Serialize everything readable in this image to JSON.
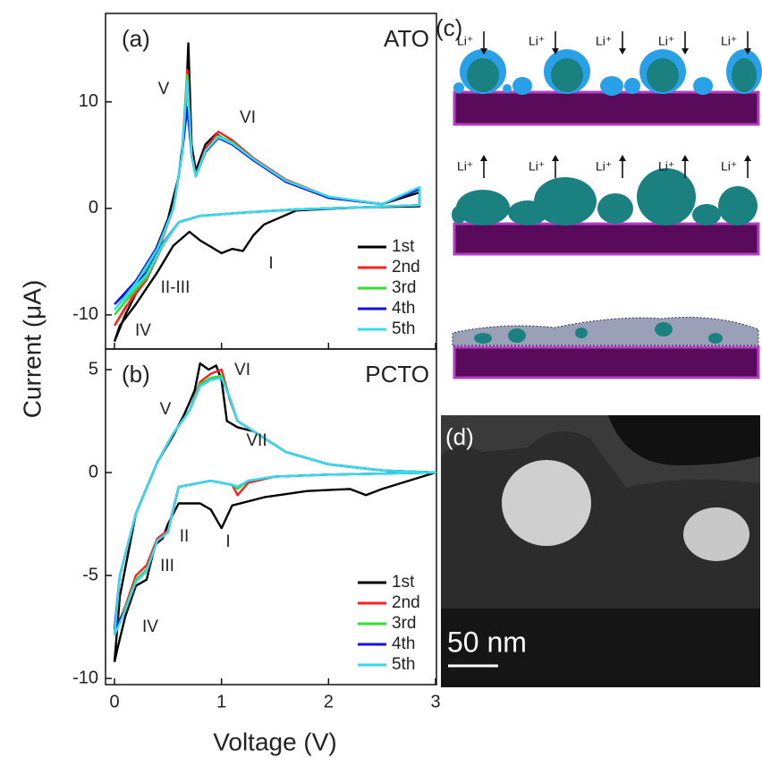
{
  "chart_data": [
    {
      "type": "line",
      "panel": "(a)",
      "title": "ATO",
      "ylabel": "Current (μA)",
      "xlim": [
        0,
        3
      ],
      "xticks": [
        0,
        1,
        2,
        3
      ],
      "ylim": [
        -13.2,
        18.3
      ],
      "yticks": [
        -10,
        0,
        10
      ],
      "annotations": [
        "V",
        "VI",
        "II-III",
        "IV",
        "I"
      ],
      "legend": "lower right",
      "series": [
        {
          "name": "1st",
          "color": "#000000",
          "x": [
            0,
            0.1,
            0.3,
            0.5,
            0.6,
            0.66,
            0.69,
            0.72,
            0.76,
            0.85,
            0.95,
            1.1,
            1.3,
            1.6,
            2.0,
            2.5,
            2.85,
            2.85,
            2.3,
            1.7,
            1.4,
            1.3,
            1.2,
            1.1,
            1.0,
            0.8,
            0.7,
            0.55,
            0.4,
            0.3,
            0.2,
            0.05,
            0
          ],
          "values": [
            -12.5,
            -10,
            -6,
            -1,
            3,
            8,
            15.5,
            6,
            3.5,
            6,
            7,
            6,
            4.5,
            2.5,
            1,
            0.4,
            1.5,
            0.2,
            0.1,
            -0.2,
            -1.5,
            -2.5,
            -4,
            -3.8,
            -4.2,
            -3,
            -2.2,
            -3.5,
            -6,
            -7.5,
            -9,
            -11,
            -12.5
          ]
        },
        {
          "name": "2nd",
          "color": "#ff2020",
          "x": [
            0,
            0.2,
            0.4,
            0.55,
            0.63,
            0.68,
            0.72,
            0.76,
            0.85,
            0.97,
            1.1,
            1.3,
            1.6,
            2.0,
            2.5,
            2.85,
            2.85,
            2.3,
            1.7,
            1.2,
            0.8,
            0.6,
            0.45,
            0.3,
            0.1,
            0
          ],
          "values": [
            -11,
            -7.8,
            -4.2,
            0,
            5,
            13,
            5,
            3,
            5.6,
            7.2,
            6.4,
            4.7,
            2.7,
            1.1,
            0.4,
            1.8,
            0.3,
            0.1,
            -0.1,
            -0.4,
            -0.7,
            -1.3,
            -3.5,
            -6.7,
            -9.3,
            -11
          ]
        },
        {
          "name": "3rd",
          "color": "#33dd33",
          "x": [
            0,
            0.2,
            0.4,
            0.55,
            0.63,
            0.68,
            0.72,
            0.76,
            0.85,
            0.97,
            1.1,
            1.3,
            1.6,
            2.0,
            2.5,
            2.85,
            2.85,
            2.3,
            1.7,
            1.2,
            0.8,
            0.6,
            0.45,
            0.3,
            0.1,
            0
          ],
          "values": [
            -10,
            -7.5,
            -4,
            0,
            5,
            12.5,
            5,
            3,
            5.4,
            6.8,
            6.2,
            4.6,
            2.6,
            1.1,
            0.4,
            1.8,
            0.3,
            0.1,
            -0.1,
            -0.4,
            -0.7,
            -1.3,
            -3.5,
            -6.5,
            -8.8,
            -10
          ]
        },
        {
          "name": "4th",
          "color": "#1010ee",
          "x": [
            0,
            0.2,
            0.4,
            0.55,
            0.63,
            0.68,
            0.72,
            0.76,
            0.85,
            0.97,
            1.1,
            1.3,
            1.6,
            2.0,
            2.5,
            2.85,
            2.85,
            2.3,
            1.7,
            1.2,
            0.8,
            0.6,
            0.45,
            0.3,
            0.1,
            0
          ],
          "values": [
            -9,
            -6.8,
            -3.6,
            0,
            5,
            9.5,
            5,
            3,
            5.3,
            6.6,
            6,
            4.5,
            2.5,
            1,
            0.4,
            1.8,
            0.3,
            0.1,
            -0.1,
            -0.4,
            -0.7,
            -1.3,
            -3.3,
            -6,
            -8,
            -9
          ]
        },
        {
          "name": "5th",
          "color": "#33ddee",
          "x": [
            0,
            0.2,
            0.4,
            0.55,
            0.63,
            0.68,
            0.72,
            0.76,
            0.85,
            0.97,
            1.1,
            1.3,
            1.6,
            2.0,
            2.5,
            2.85,
            2.85,
            2.3,
            1.7,
            1.2,
            0.8,
            0.6,
            0.45,
            0.3,
            0.1,
            0
          ],
          "values": [
            -9.5,
            -7,
            -3.8,
            0,
            5,
            12,
            5,
            3,
            5.4,
            6.7,
            6.1,
            4.6,
            2.6,
            1.1,
            0.4,
            2,
            0.3,
            0.1,
            -0.1,
            -0.4,
            -0.7,
            -1.3,
            -3.4,
            -6.2,
            -8.4,
            -9.5
          ]
        }
      ]
    },
    {
      "type": "line",
      "panel": "(b)",
      "title": "PCTO",
      "xlabel": "Voltage (V)",
      "xlim": [
        0,
        3
      ],
      "xticks": [
        0,
        1,
        2,
        3
      ],
      "ylim": [
        -10.3,
        6
      ],
      "yticks": [
        -10,
        -5,
        0,
        5
      ],
      "annotations": [
        "V",
        "VI",
        "VII",
        "I",
        "II",
        "III",
        "IV"
      ],
      "legend": "lower right",
      "series": [
        {
          "name": "1st",
          "color": "#000000",
          "x": [
            0,
            0.05,
            0.2,
            0.4,
            0.55,
            0.65,
            0.75,
            0.8,
            0.88,
            0.95,
            1.0,
            1.05,
            1.15,
            1.3,
            1.6,
            2.0,
            2.5,
            3,
            2.5,
            2.35,
            2.2,
            1.8,
            1.4,
            1.1,
            1.0,
            0.9,
            0.8,
            0.6,
            0.5,
            0.45,
            0.38,
            0.3,
            0.2,
            0.1,
            0.03,
            0
          ],
          "values": [
            -9.2,
            -6,
            -2,
            0.5,
            1.8,
            2.8,
            4,
            5.3,
            5,
            5.2,
            4.5,
            2.5,
            2.2,
            2,
            1,
            0.4,
            0.1,
            0,
            -0.8,
            -1.1,
            -0.8,
            -0.9,
            -1.2,
            -1.6,
            -2.7,
            -1.8,
            -1.5,
            -1.5,
            -2.5,
            -3.2,
            -3.5,
            -5.2,
            -5.5,
            -7,
            -8.5,
            -9.2
          ]
        },
        {
          "name": "2nd",
          "color": "#ff2020",
          "x": [
            0,
            0.05,
            0.2,
            0.4,
            0.55,
            0.7,
            0.8,
            0.9,
            1.0,
            1.08,
            1.15,
            1.3,
            1.6,
            2.0,
            2.5,
            3,
            2.5,
            2.0,
            1.5,
            1.25,
            1.15,
            1.1,
            0.9,
            0.6,
            0.5,
            0.4,
            0.3,
            0.2,
            0.1,
            0
          ],
          "values": [
            -7.8,
            -5,
            -2,
            0.5,
            1.9,
            3,
            4.4,
            4.8,
            5,
            3.5,
            2.5,
            2,
            1,
            0.4,
            0.1,
            0,
            -0.05,
            -0.1,
            -0.2,
            -0.5,
            -1.1,
            -0.6,
            -0.4,
            -0.7,
            -2.8,
            -3.2,
            -4.5,
            -5,
            -6.5,
            -7.8
          ]
        },
        {
          "name": "3rd",
          "color": "#33dd33",
          "x": [
            0,
            0.05,
            0.2,
            0.4,
            0.55,
            0.7,
            0.8,
            0.9,
            1.0,
            1.08,
            1.15,
            1.3,
            1.6,
            2.0,
            2.5,
            3,
            2.5,
            2.0,
            1.5,
            1.25,
            1.15,
            1.1,
            0.9,
            0.6,
            0.5,
            0.4,
            0.3,
            0.2,
            0.1,
            0
          ],
          "values": [
            -7.8,
            -5,
            -2,
            0.5,
            1.9,
            3,
            4.3,
            4.6,
            4.7,
            3.6,
            2.5,
            2,
            1,
            0.4,
            0.1,
            0,
            -0.05,
            -0.1,
            -0.2,
            -0.4,
            -0.8,
            -0.6,
            -0.4,
            -0.7,
            -2.9,
            -3.3,
            -4.7,
            -5.2,
            -6.6,
            -7.8
          ]
        },
        {
          "name": "4th",
          "color": "#1010ee",
          "x": [
            0,
            0.05,
            0.2,
            0.4,
            0.55,
            0.7,
            0.8,
            0.9,
            1.0,
            1.08,
            1.15,
            1.3,
            1.6,
            2.0,
            2.5,
            3,
            2.5,
            2.0,
            1.5,
            1.25,
            1.15,
            1.1,
            0.9,
            0.6,
            0.5,
            0.4,
            0.3,
            0.2,
            0.1,
            0
          ],
          "values": [
            -7.6,
            -5,
            -2,
            0.5,
            1.9,
            3,
            4.2,
            4.5,
            4.6,
            3.6,
            2.5,
            2,
            1,
            0.4,
            0.1,
            0,
            -0.05,
            -0.1,
            -0.2,
            -0.4,
            -0.7,
            -0.6,
            -0.4,
            -0.7,
            -2.9,
            -3.3,
            -4.8,
            -5.3,
            -6.7,
            -7.6
          ]
        },
        {
          "name": "5th",
          "color": "#33ddee",
          "x": [
            0,
            0.05,
            0.2,
            0.4,
            0.55,
            0.7,
            0.8,
            0.9,
            1.0,
            1.08,
            1.15,
            1.3,
            1.6,
            2.0,
            2.5,
            3,
            2.5,
            2.0,
            1.5,
            1.25,
            1.15,
            1.1,
            0.9,
            0.6,
            0.5,
            0.4,
            0.3,
            0.2,
            0.1,
            0
          ],
          "values": [
            -7.9,
            -5,
            -2,
            0.5,
            1.9,
            3,
            4.2,
            4.5,
            4.6,
            3.6,
            2.5,
            2,
            1,
            0.4,
            0.1,
            0,
            -0.05,
            -0.1,
            -0.2,
            -0.4,
            -0.7,
            -0.6,
            -0.4,
            -0.7,
            -2.9,
            -3.3,
            -4.8,
            -5.3,
            -6.7,
            -7.9
          ]
        }
      ]
    }
  ],
  "schematic": {
    "label": "(c)",
    "ions_in": [
      "Li⁺",
      "Li⁺",
      "Li⁺",
      "Li⁺",
      "Li⁺"
    ],
    "ions_out": [
      "Li⁺",
      "Li⁺",
      "Li⁺",
      "Li⁺",
      "Li⁺"
    ]
  },
  "micrograph": {
    "label": "(d)",
    "scale_bar": "50 nm"
  }
}
